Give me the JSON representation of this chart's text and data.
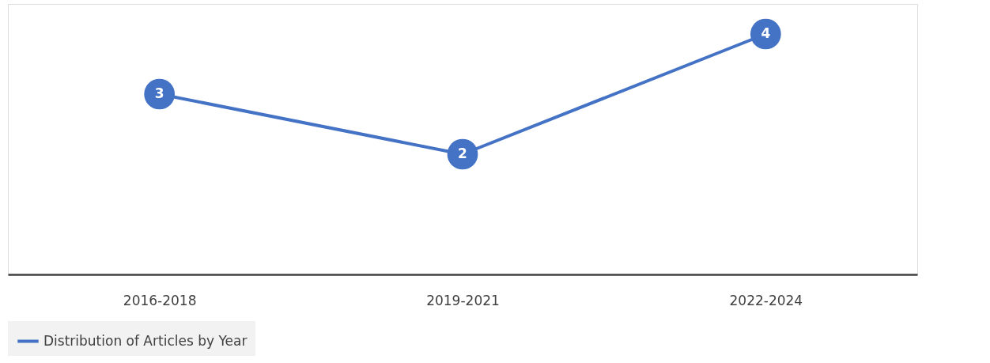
{
  "chart_data": {
    "type": "line",
    "categories": [
      "2016-2018",
      "2019-2021",
      "2022-2024"
    ],
    "series": [
      {
        "name": "Distribution of Articles by Year",
        "color": "#4472c4",
        "values": [
          3,
          2,
          4
        ]
      }
    ],
    "ylim": [
      0,
      4.5
    ],
    "data_labels": true,
    "marker": "circle",
    "line_style": "solid",
    "legend": "bottom",
    "grid": false,
    "tick_labels": "x"
  }
}
